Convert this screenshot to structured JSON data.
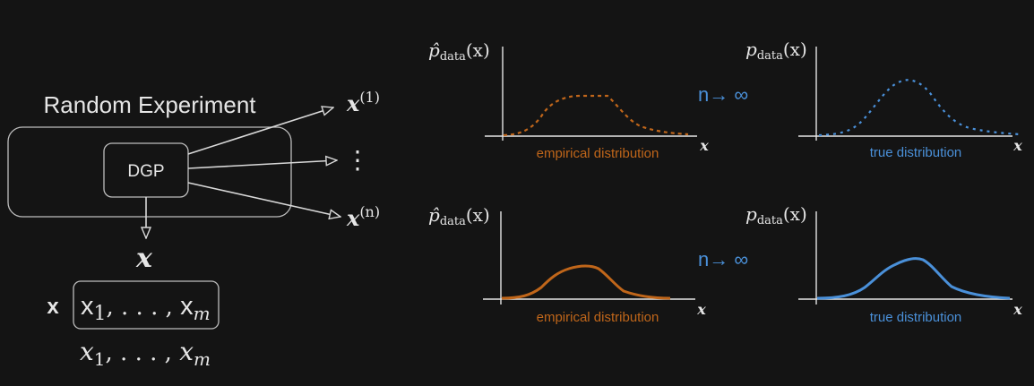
{
  "left_diagram": {
    "title": "Random Experiment",
    "dgp_label": "DGP",
    "output_top_base": "x",
    "output_top_sup": "(1)",
    "output_mid": "⋮",
    "output_bottom_base": "x",
    "output_bottom_sup": "(n)",
    "down_output": "x",
    "vector_label": "x",
    "vector_box_text_a": "x",
    "vector_box_sub_a": "1",
    "vector_box_mid": ", . . . , ",
    "vector_box_text_b": "x",
    "vector_box_sub_b": "m",
    "lower_text_a": "x",
    "lower_sub_a": "1",
    "lower_mid": ", . . . , ",
    "lower_text_b": "x",
    "lower_sub_b": "m"
  },
  "colors": {
    "background": "#141414",
    "foreground": "#e6e6e6",
    "empirical": "#c0661a",
    "true": "#4a90d9"
  },
  "arrow_label_top": "n→ ∞",
  "arrow_label_bottom": "n→ ∞",
  "panels": {
    "top_left": {
      "ylabel_main": "p̂",
      "ylabel_sub": "data",
      "ylabel_arg": "(x)",
      "xlabel": "x",
      "caption": "empirical distribution"
    },
    "top_right": {
      "ylabel_main": "p",
      "ylabel_sub": "data",
      "ylabel_arg": "(x)",
      "xlabel": "x",
      "caption": "true distribution"
    },
    "bottom_left": {
      "ylabel_main": "p̂",
      "ylabel_sub": "data",
      "ylabel_arg": "(x)",
      "xlabel": "x",
      "caption": "empirical distribution"
    },
    "bottom_right": {
      "ylabel_main": "p",
      "ylabel_sub": "data",
      "ylabel_arg": "(x)",
      "xlabel": "x",
      "caption": "true distribution"
    }
  }
}
